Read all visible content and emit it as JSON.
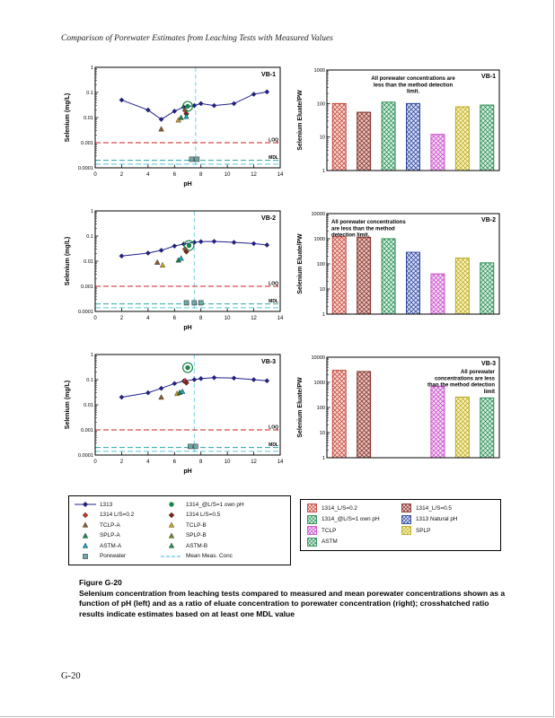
{
  "page": {
    "header": "Comparison of Porewater Estimates from Leaching Tests with Measured Values",
    "figure_label": "Figure G-20",
    "caption": "Selenium concentration from leaching tests compared to measured and mean porewater concentrations shown as a function of pH (left) and as a ratio of eluate concentration to porewater concentration (right); crosshatched ratio results indicate estimates based on at least one MDL value",
    "page_number": "G-20"
  },
  "colors": {
    "annotation": "#8B1A1A",
    "frame": "#000000",
    "vline": "#7FD8EC",
    "loq": "#CC2222",
    "mdl": "#2AA8A8",
    "mean": "#5BC8DC"
  },
  "bar_styles": {
    "1314_L/S=0.2": {
      "edge": "#C0392B",
      "fill": "#F6D7D3"
    },
    "1314_L/S=0.5": {
      "edge": "#7B241C",
      "fill": "#E6C3BE"
    },
    "1314_@L/S=1 own pH": {
      "edge": "#1E8449",
      "fill": "#D4EFDF"
    },
    "1313 Natural pH": {
      "edge": "#1F3A93",
      "fill": "#D6DCF5"
    },
    "TCLP": {
      "edge": "#C544C5",
      "fill": "#F5D9F5"
    },
    "SPLP": {
      "edge": "#B7A414",
      "fill": "#F9F3C0"
    },
    "ASTM": {
      "edge": "#1E8449",
      "fill": "#D4EFDF"
    }
  },
  "legend": {
    "left": [
      {
        "label": "1313",
        "marker": "line-diamond",
        "color": "#1F1F8F"
      },
      {
        "label": "1314_@L/S=1 own pH",
        "marker": "circle",
        "color": "#1E8449"
      },
      {
        "label": "1314 L/S=0.2",
        "marker": "diamond",
        "color": "#C0392B"
      },
      {
        "label": "1314 L/S=0.5",
        "marker": "diamond",
        "color": "#7B241C"
      },
      {
        "label": "TCLP-A",
        "marker": "triangle",
        "color": "#8B5A2B"
      },
      {
        "label": "TCLP-B",
        "marker": "triangle",
        "color": "#C9A227"
      },
      {
        "label": "SPLP-A",
        "marker": "triangle",
        "color": "#1E8449"
      },
      {
        "label": "SPLP-B",
        "marker": "triangle",
        "color": "#6B8E23"
      },
      {
        "label": "ASTM-A",
        "marker": "triangle",
        "color": "#17A2B8"
      },
      {
        "label": "ASTM-B",
        "marker": "triangle",
        "color": "#2E8B57"
      },
      {
        "label": "Porewater",
        "marker": "square",
        "color": "#6FA8A8"
      },
      {
        "label": "Mean Meas. Conc",
        "marker": "dash",
        "color": "#5BC8DC"
      }
    ],
    "right": [
      {
        "label": "1314_L/S=0.2"
      },
      {
        "label": "1314_L/S=0.5"
      },
      {
        "label": "1314_@L/S=1 own pH"
      },
      {
        "label": "1313 Natural pH"
      },
      {
        "label": "TCLP"
      },
      {
        "label": "SPLP"
      },
      {
        "label": "ASTM"
      }
    ]
  },
  "chart_data": [
    {
      "container": "chart-vb1-xy",
      "type": "line",
      "panel_label": "VB-1",
      "xlabel": "pH",
      "ylabel": "Selenium (mg/L)",
      "xlim": [
        0,
        14
      ],
      "xticks": [
        0,
        2,
        4,
        6,
        8,
        10,
        12,
        14
      ],
      "ylog": true,
      "ylim": [
        0.0001,
        1
      ],
      "yticks": [
        1,
        0.1,
        0.01,
        0.001,
        0.0001
      ],
      "series": [
        {
          "name": "1313",
          "marker": "diamond",
          "color": "#1F1F8F",
          "line": true,
          "points": [
            [
              2,
              0.05
            ],
            [
              4,
              0.02
            ],
            [
              5,
              0.0085
            ],
            [
              6,
              0.018
            ],
            [
              6.7,
              0.026
            ],
            [
              7.5,
              0.03
            ],
            [
              8,
              0.036
            ],
            [
              9,
              0.03
            ],
            [
              10.5,
              0.036
            ],
            [
              12,
              0.085
            ],
            [
              13,
              0.105
            ]
          ]
        },
        {
          "name": "1314 L/S=0.2",
          "marker": "diamond",
          "color": "#C0392B",
          "points": [
            [
              6.8,
              0.019
            ]
          ]
        },
        {
          "name": "1314 L/S=0.5",
          "marker": "diamond",
          "color": "#7B241C",
          "points": [
            [
              6.9,
              0.014
            ]
          ]
        },
        {
          "name": "1314_@L/S=1 own pH",
          "marker": "circle",
          "color": "#1E8449",
          "circled": true,
          "points": [
            [
              7.0,
              0.028
            ]
          ]
        },
        {
          "name": "TCLP-A",
          "marker": "triangle",
          "color": "#8B5A2B",
          "points": [
            [
              5.0,
              0.0035
            ]
          ]
        },
        {
          "name": "TCLP-B",
          "marker": "triangle",
          "color": "#C9A227",
          "points": [
            [
              6.3,
              0.008
            ]
          ]
        },
        {
          "name": "SPLP-A",
          "marker": "triangle",
          "color": "#1E8449",
          "points": [
            [
              6.5,
              0.01
            ]
          ]
        },
        {
          "name": "ASTM-A",
          "marker": "triangle",
          "color": "#17A2B8",
          "points": [
            [
              6.9,
              0.011
            ]
          ]
        },
        {
          "name": "Porewater",
          "marker": "square",
          "color": "#6FA8A8",
          "points": [
            [
              7.3,
              0.00022
            ],
            [
              7.7,
              0.00022
            ]
          ]
        }
      ],
      "hlines": [
        {
          "y": 0.001,
          "label": "LOQ",
          "color_key": "loq"
        },
        {
          "y": 0.0002,
          "label": "MDL",
          "color_key": "mdl"
        },
        {
          "y": 0.00014,
          "label": "",
          "color_key": "mean"
        }
      ],
      "vlines": [
        {
          "x": 7.6,
          "color_key": "vline"
        }
      ]
    },
    {
      "container": "chart-vb1-ratio",
      "type": "bar",
      "panel_label": "VB-1",
      "ylabel": "Selenium Eluate/PW",
      "ylog": true,
      "ylim": [
        1,
        1000
      ],
      "yticks": [
        1,
        10,
        100,
        1000
      ],
      "annotation": "All porewater concentrations are less than the method detection limit.",
      "annotation_pos": "center",
      "annotation_wrap": 34,
      "bars": [
        {
          "name": "1314_L/S=0.2",
          "value": 100
        },
        {
          "name": "1314_L/S=0.5",
          "value": 55
        },
        {
          "name": "1314_@L/S=1 own pH",
          "value": 110
        },
        {
          "name": "1313 Natural pH",
          "value": 100
        },
        {
          "name": "TCLP",
          "value": 12
        },
        {
          "name": "SPLP",
          "value": 80
        },
        {
          "name": "ASTM",
          "value": 90
        }
      ]
    },
    {
      "container": "chart-vb2-xy",
      "type": "line",
      "panel_label": "VB-2",
      "xlabel": "pH",
      "ylabel": "Selenium (mg/L)",
      "xlim": [
        0,
        14
      ],
      "xticks": [
        0,
        2,
        4,
        6,
        8,
        10,
        12,
        14
      ],
      "ylog": true,
      "ylim": [
        0.0001,
        1
      ],
      "yticks": [
        1,
        0.1,
        0.01,
        0.001,
        0.0001
      ],
      "series": [
        {
          "name": "1313",
          "marker": "diamond",
          "color": "#1F1F8F",
          "line": true,
          "points": [
            [
              2,
              0.016
            ],
            [
              4,
              0.021
            ],
            [
              5,
              0.027
            ],
            [
              6,
              0.04
            ],
            [
              6.7,
              0.048
            ],
            [
              7.5,
              0.056
            ],
            [
              8,
              0.06
            ],
            [
              9,
              0.061
            ],
            [
              10.5,
              0.056
            ],
            [
              12,
              0.05
            ],
            [
              13,
              0.044
            ]
          ]
        },
        {
          "name": "1314 L/S=0.2",
          "marker": "diamond",
          "color": "#C0392B",
          "points": [
            [
              6.8,
              0.03
            ]
          ]
        },
        {
          "name": "1314 L/S=0.5",
          "marker": "diamond",
          "color": "#7B241C",
          "points": [
            [
              6.9,
              0.024
            ]
          ]
        },
        {
          "name": "1314_@L/S=1 own pH",
          "marker": "circle",
          "color": "#1E8449",
          "circled": true,
          "points": [
            [
              7.1,
              0.042
            ]
          ]
        },
        {
          "name": "TCLP-A",
          "marker": "triangle",
          "color": "#8B5A2B",
          "points": [
            [
              4.7,
              0.009
            ]
          ]
        },
        {
          "name": "TCLP-B",
          "marker": "triangle",
          "color": "#C9A227",
          "points": [
            [
              5.1,
              0.007
            ]
          ]
        },
        {
          "name": "SPLP-A",
          "marker": "triangle",
          "color": "#1E8449",
          "points": [
            [
              6.3,
              0.011
            ]
          ]
        },
        {
          "name": "ASTM-A",
          "marker": "triangle",
          "color": "#17A2B8",
          "points": [
            [
              6.5,
              0.013
            ]
          ]
        },
        {
          "name": "Porewater",
          "marker": "square",
          "color": "#6FA8A8",
          "points": [
            [
              6.9,
              0.00022
            ],
            [
              7.5,
              0.00022
            ],
            [
              8.0,
              0.00022
            ]
          ]
        }
      ],
      "hlines": [
        {
          "y": 0.001,
          "label": "LOQ",
          "color_key": "loq"
        },
        {
          "y": 0.0002,
          "label": "MDL",
          "color_key": "mdl"
        },
        {
          "y": 0.00014,
          "label": "",
          "color_key": "mean"
        }
      ],
      "vlines": [
        {
          "x": 7.5,
          "color_key": "vline"
        }
      ]
    },
    {
      "container": "chart-vb2-ratio",
      "type": "bar",
      "panel_label": "VB-2",
      "ylabel": "Selenium Eluate/PW",
      "ylog": true,
      "ylim": [
        1,
        10000
      ],
      "yticks": [
        1,
        10,
        100,
        1000,
        10000
      ],
      "annotation": "All porewater concentrations are less than the method detection limit.",
      "annotation_pos": "left",
      "annotation_wrap": 30,
      "bars": [
        {
          "name": "1314_L/S=0.2",
          "value": 1200
        },
        {
          "name": "1314_L/S=0.5",
          "value": 1150
        },
        {
          "name": "1314_@L/S=1 own pH",
          "value": 1000
        },
        {
          "name": "1313 Natural pH",
          "value": 290
        },
        {
          "name": "TCLP",
          "value": 40
        },
        {
          "name": "SPLP",
          "value": 170
        },
        {
          "name": "ASTM",
          "value": 110
        }
      ]
    },
    {
      "container": "chart-vb3-xy",
      "type": "line",
      "panel_label": "VB-3",
      "xlabel": "pH",
      "ylabel": "Selenium (mg/L)",
      "xlim": [
        0,
        14
      ],
      "xticks": [
        0,
        2,
        4,
        6,
        8,
        10,
        12,
        14
      ],
      "ylog": true,
      "ylim": [
        0.0001,
        1
      ],
      "yticks": [
        1,
        0.1,
        0.01,
        0.001,
        0.0001
      ],
      "series": [
        {
          "name": "1313",
          "marker": "diamond",
          "color": "#1F1F8F",
          "line": true,
          "points": [
            [
              2,
              0.02
            ],
            [
              4,
              0.03
            ],
            [
              5,
              0.045
            ],
            [
              6,
              0.07
            ],
            [
              6.7,
              0.088
            ],
            [
              7.5,
              0.1
            ],
            [
              8,
              0.11
            ],
            [
              9,
              0.12
            ],
            [
              10.5,
              0.115
            ],
            [
              12,
              0.1
            ],
            [
              13,
              0.09
            ]
          ]
        },
        {
          "name": "1314 L/S=0.2",
          "marker": "diamond",
          "color": "#C0392B",
          "points": [
            [
              6.8,
              0.09
            ]
          ]
        },
        {
          "name": "1314 L/S=0.5",
          "marker": "diamond",
          "color": "#7B241C",
          "points": [
            [
              6.9,
              0.075
            ]
          ]
        },
        {
          "name": "1314_@L/S=1 own pH",
          "marker": "circle",
          "color": "#1E8449",
          "circled": true,
          "points": [
            [
              7.0,
              0.3
            ]
          ]
        },
        {
          "name": "TCLP-A",
          "marker": "triangle",
          "color": "#8B5A2B",
          "points": [
            [
              5.0,
              0.02
            ]
          ]
        },
        {
          "name": "TCLP-B",
          "marker": "triangle",
          "color": "#C9A227",
          "points": [
            [
              6.2,
              0.028
            ]
          ]
        },
        {
          "name": "SPLP-A",
          "marker": "triangle",
          "color": "#1E8449",
          "points": [
            [
              6.4,
              0.031
            ]
          ]
        },
        {
          "name": "ASTM-A",
          "marker": "triangle",
          "color": "#17A2B8",
          "points": [
            [
              6.6,
              0.034
            ]
          ]
        },
        {
          "name": "Porewater",
          "marker": "square",
          "color": "#6FA8A8",
          "points": [
            [
              7.2,
              0.00022
            ],
            [
              7.6,
              0.00022
            ]
          ]
        }
      ],
      "hlines": [
        {
          "y": 0.001,
          "label": "LOQ",
          "color_key": "loq"
        },
        {
          "y": 0.0002,
          "label": "MDL",
          "color_key": "mdl"
        },
        {
          "y": 0.00014,
          "label": "",
          "color_key": "mean"
        }
      ],
      "vlines": [
        {
          "x": 7.5,
          "color_key": "vline"
        }
      ]
    },
    {
      "container": "chart-vb3-ratio",
      "type": "bar",
      "panel_label": "VB-3",
      "ylabel": "Selenium Eluate/PW",
      "ylog": true,
      "ylim": [
        1,
        10000
      ],
      "yticks": [
        1,
        10,
        100,
        1000,
        10000
      ],
      "annotation": "All porewater concentrations are less than the method detection limit",
      "annotation_pos": "right",
      "annotation_wrap": 26,
      "bars": [
        {
          "name": "1314_L/S=0.2",
          "value": 3000
        },
        {
          "name": "1314_L/S=0.5",
          "value": 2700
        },
        {
          "name": "1314_@L/S=1 own pH",
          "value": null
        },
        {
          "name": "1313 Natural pH",
          "value": null
        },
        {
          "name": "TCLP",
          "value": 700
        },
        {
          "name": "SPLP",
          "value": 260
        },
        {
          "name": "ASTM",
          "value": 240
        }
      ]
    }
  ]
}
